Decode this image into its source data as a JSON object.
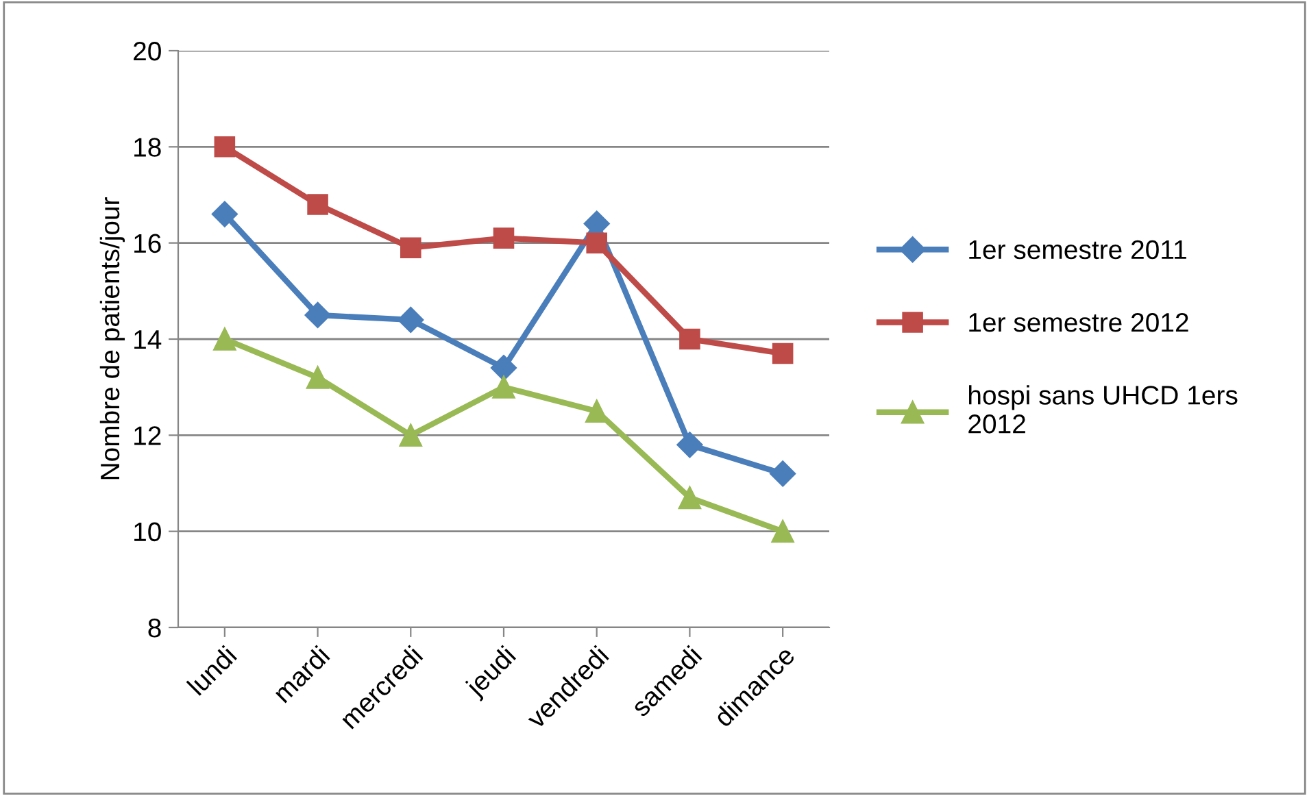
{
  "chart_data": {
    "type": "line",
    "ylabel": "Nombre de patients/jour",
    "categories": [
      "lundi",
      "mardi",
      "mercredi",
      "jeudi",
      "vendredi",
      "samedi",
      "dimance"
    ],
    "series": [
      {
        "name": "1er semestre 2011",
        "color": "#4a7ebb",
        "marker": "diamond",
        "values": [
          16.6,
          14.5,
          14.4,
          13.4,
          16.4,
          11.8,
          11.2
        ]
      },
      {
        "name": "1er semestre 2012",
        "color": "#be4b48",
        "marker": "square",
        "values": [
          18.0,
          16.8,
          15.9,
          16.1,
          16.0,
          14.0,
          13.7
        ]
      },
      {
        "name": "hospi sans UHCD 1ers\n2012",
        "color": "#98b954",
        "marker": "triangle",
        "values": [
          14.0,
          13.2,
          12.0,
          13.0,
          12.5,
          10.7,
          10.0
        ]
      }
    ],
    "ylim": [
      8,
      20
    ],
    "yticks": [
      8,
      10,
      12,
      14,
      16,
      18,
      20
    ],
    "grid": "y",
    "legend": "right",
    "line_style": "solid"
  }
}
